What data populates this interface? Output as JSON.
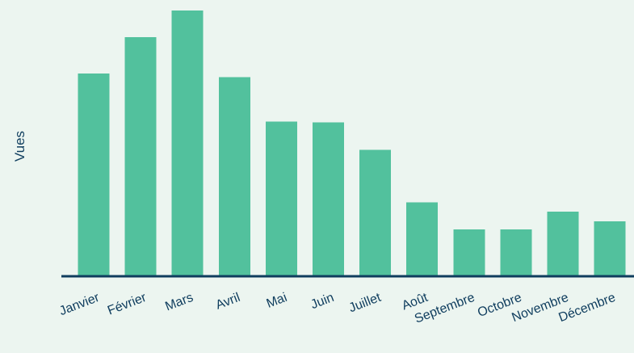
{
  "chart_data": {
    "type": "bar",
    "title": "",
    "xlabel": "",
    "ylabel": "Vues",
    "categories": [
      "Janvier",
      "Février",
      "Mars",
      "Avril",
      "Mai",
      "Juin",
      "Juillet",
      "Août",
      "Septembre",
      "Octobre",
      "Novembre",
      "Décembre"
    ],
    "values": [
      251,
      296,
      329,
      246,
      191,
      190,
      156,
      91,
      57,
      57,
      79,
      67
    ],
    "ylim": [
      0,
      330
    ],
    "grid": false,
    "legend": "none",
    "colors": {
      "background": "#ecf5f0",
      "bar": "#52c19d",
      "axis": "#0f3d5e",
      "text": "#0f3d5e"
    }
  }
}
